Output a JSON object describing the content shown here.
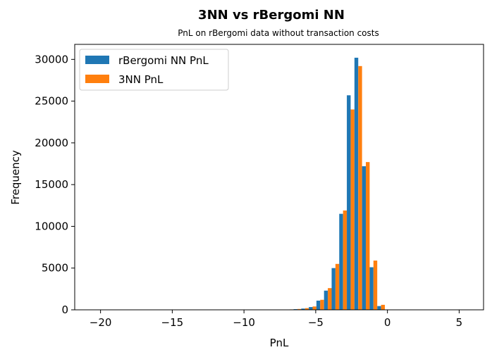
{
  "chart_data": {
    "type": "bar",
    "title": "3NN vs rBergomi NN",
    "subtitle": "PnL on rBergomi data without transaction costs",
    "xlabel": "PnL",
    "ylabel": "Frequency",
    "xlim": [
      -21.8,
      6.7
    ],
    "ylim": [
      0,
      31800
    ],
    "xticks": [
      -20,
      -15,
      -10,
      -5,
      0,
      5
    ],
    "xtick_labels": [
      "−20",
      "−15",
      "−10",
      "−5",
      "0",
      "5"
    ],
    "yticks": [
      0,
      5000,
      10000,
      15000,
      20000,
      25000,
      30000
    ],
    "ytick_labels": [
      "0",
      "5000",
      "10000",
      "15000",
      "20000",
      "25000",
      "30000"
    ],
    "grid": false,
    "legend_position": "top-left",
    "bin_width": 0.53,
    "bin_starts": [
      -7.07,
      -6.54,
      -6.01,
      -5.48,
      -4.95,
      -4.42,
      -3.89,
      -3.36,
      -2.83,
      -2.3,
      -1.77,
      -1.24,
      -0.71
    ],
    "series": [
      {
        "name": "rBergomi NN PnL",
        "color": "#1f77b4",
        "values": [
          40,
          80,
          150,
          330,
          1100,
          2300,
          5000,
          11500,
          25700,
          30200,
          17200,
          5100,
          450
        ]
      },
      {
        "name": "3NN PnL",
        "color": "#ff7f0e",
        "values": [
          50,
          100,
          200,
          400,
          1200,
          2600,
          5500,
          11900,
          24000,
          29200,
          17700,
          5900,
          600
        ]
      }
    ]
  }
}
